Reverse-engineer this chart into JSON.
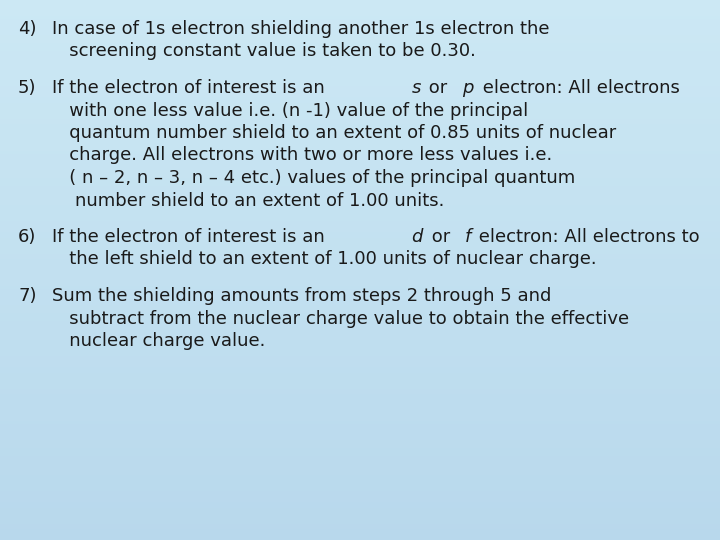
{
  "bg_color": "#cce8f4",
  "text_color": "#1a1a1a",
  "font_size": 13.0,
  "paragraphs": [
    {
      "number": "4)",
      "parts_lines": [
        [
          {
            "text": "In case of 1s electron shielding another 1s electron the",
            "italic": false
          }
        ],
        [
          {
            "text": "   screening constant value is taken to be 0.30.",
            "italic": false
          }
        ]
      ]
    },
    {
      "number": "5)",
      "parts_lines": [
        [
          {
            "text": "If the electron of interest is an ",
            "italic": false
          },
          {
            "text": "s",
            "italic": true
          },
          {
            "text": " or ",
            "italic": false
          },
          {
            "text": "p",
            "italic": true
          },
          {
            "text": " electron: All electrons",
            "italic": false
          }
        ],
        [
          {
            "text": "   with one less value i.e. (n -1) value of the principal",
            "italic": false
          }
        ],
        [
          {
            "text": "   quantum number shield to an extent of 0.85 units of nuclear",
            "italic": false
          }
        ],
        [
          {
            "text": "   charge. All electrons with two or more less values i.e.",
            "italic": false
          }
        ],
        [
          {
            "text": "   ( n – 2, n – 3, n – 4 etc.) values of the principal quantum",
            "italic": false
          }
        ],
        [
          {
            "text": "    number shield to an extent of 1.00 units.",
            "italic": false
          }
        ]
      ]
    },
    {
      "number": "6)",
      "parts_lines": [
        [
          {
            "text": "If the electron of interest is an ",
            "italic": false
          },
          {
            "text": "d",
            "italic": true
          },
          {
            "text": " or ",
            "italic": false
          },
          {
            "text": "f",
            "italic": true
          },
          {
            "text": " electron: All electrons to",
            "italic": false
          }
        ],
        [
          {
            "text": "   the left shield to an extent of 1.00 units of nuclear charge.",
            "italic": false
          }
        ]
      ]
    },
    {
      "number": "7)",
      "parts_lines": [
        [
          {
            "text": "Sum the shielding amounts from steps 2 through 5 and",
            "italic": false
          }
        ],
        [
          {
            "text": "   subtract from the nuclear charge value to obtain the effective",
            "italic": false
          }
        ],
        [
          {
            "text": "   nuclear charge value.",
            "italic": false
          }
        ]
      ]
    }
  ]
}
